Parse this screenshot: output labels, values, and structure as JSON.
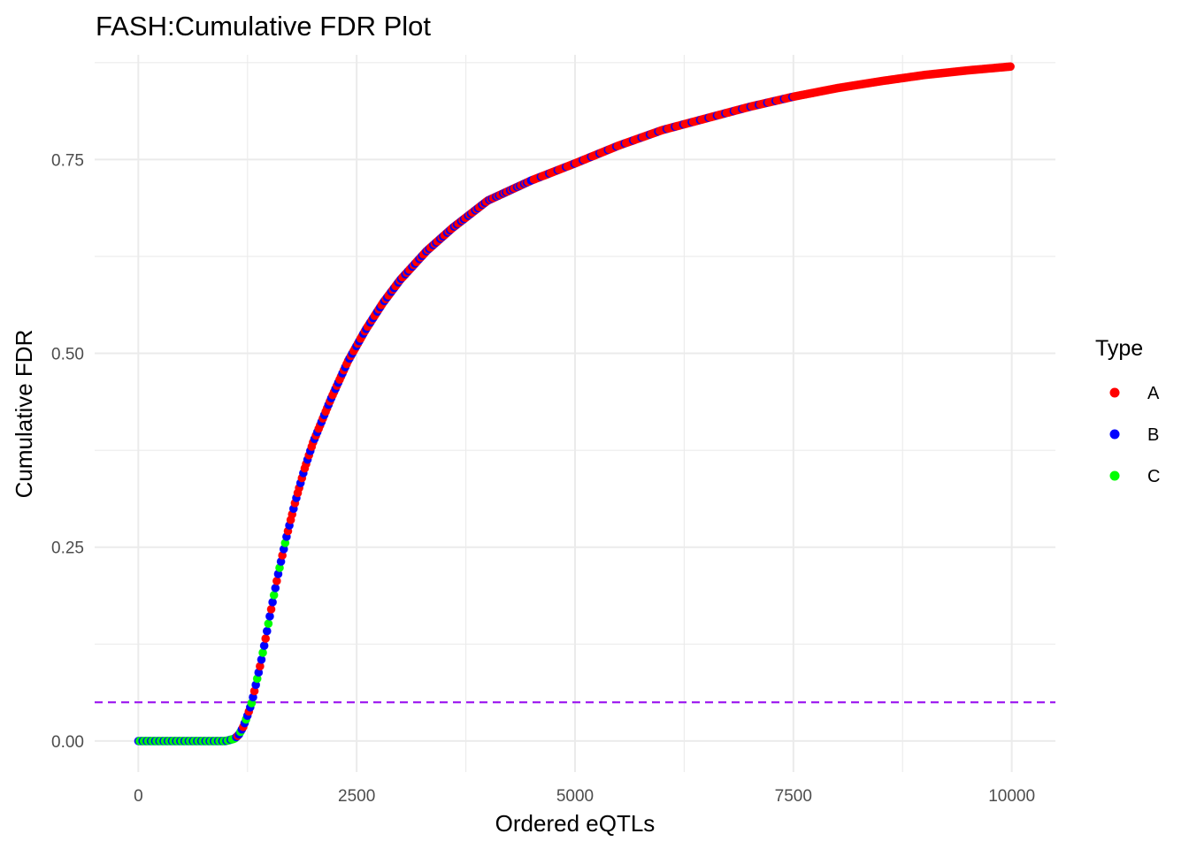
{
  "chart_data": {
    "type": "scatter",
    "title": "FASH:Cumulative FDR Plot",
    "xlabel": "Ordered eQTLs",
    "ylabel": "Cumulative FDR",
    "xlim": [
      -500,
      10500
    ],
    "ylim": [
      -0.04,
      0.885
    ],
    "x_ticks": [
      0,
      2500,
      5000,
      7500,
      10000
    ],
    "y_ticks": [
      0.0,
      0.25,
      0.5,
      0.75
    ],
    "x_tick_labels": [
      "0",
      "2500",
      "5000",
      "7500",
      "10000"
    ],
    "y_tick_labels": [
      "0.00",
      "0.25",
      "0.50",
      "0.75"
    ],
    "grid": true,
    "reference_line": {
      "y": 0.05,
      "style": "dashed",
      "color": "#a020f0"
    },
    "legend": {
      "title": "Type",
      "position": "right",
      "entries": [
        {
          "label": "A",
          "color": "#ff0000"
        },
        {
          "label": "B",
          "color": "#0000ff"
        },
        {
          "label": "C",
          "color": "#00ff00"
        }
      ]
    },
    "curve": {
      "x": [
        1,
        200,
        400,
        600,
        800,
        1000,
        1100,
        1150,
        1200,
        1250,
        1300,
        1350,
        1400,
        1450,
        1500,
        1600,
        1700,
        1800,
        1900,
        2000,
        2200,
        2400,
        2600,
        2800,
        3000,
        3300,
        3600,
        4000,
        4500,
        5000,
        5500,
        6000,
        6500,
        7000,
        7500,
        8000,
        8500,
        9000,
        9500,
        10000
      ],
      "y": [
        0.0,
        0.0,
        0.0,
        0.0,
        0.0,
        0.0,
        0.003,
        0.008,
        0.018,
        0.033,
        0.05,
        0.075,
        0.1,
        0.128,
        0.158,
        0.215,
        0.265,
        0.31,
        0.35,
        0.385,
        0.44,
        0.49,
        0.53,
        0.565,
        0.595,
        0.632,
        0.662,
        0.697,
        0.723,
        0.745,
        0.768,
        0.788,
        0.803,
        0.818,
        0.831,
        0.842,
        0.851,
        0.859,
        0.865,
        0.87
      ]
    }
  }
}
